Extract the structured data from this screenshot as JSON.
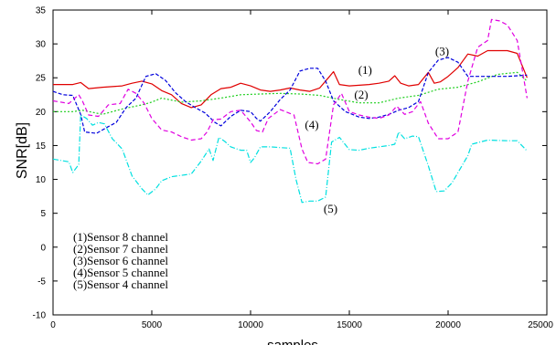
{
  "chart_data": {
    "type": "line",
    "xlabel": "samples",
    "ylabel": "SNR[dB]",
    "xlim": [
      0,
      25000
    ],
    "ylim": [
      -10,
      35
    ],
    "xticks": [
      0,
      5000,
      10000,
      15000,
      20000,
      25000
    ],
    "yticks": [
      -10,
      -5,
      0,
      5,
      10,
      15,
      20,
      25,
      30,
      35
    ],
    "grid": false,
    "legend_position": "bottom-left",
    "legend": [
      "(1)Sensor 8 channel",
      "(2)Sensor 7 channel",
      "(3)Sensor 6 channel",
      "(4)Sensor 5 channel",
      "(5)Sensor 4 channel"
    ],
    "series": [
      {
        "label": "(1)",
        "label_at": [
          15800,
          25.6
        ],
        "color": "#e00000",
        "dash": "",
        "points": [
          [
            0,
            24.0
          ],
          [
            1000,
            24.0
          ],
          [
            1400,
            24.3
          ],
          [
            1800,
            23.4
          ],
          [
            2500,
            23.6
          ],
          [
            3500,
            23.8
          ],
          [
            4000,
            24.2
          ],
          [
            4500,
            24.5
          ],
          [
            5000,
            24.1
          ],
          [
            5500,
            23.1
          ],
          [
            6000,
            22.5
          ],
          [
            6500,
            21.2
          ],
          [
            7000,
            20.6
          ],
          [
            7500,
            21.0
          ],
          [
            8000,
            22.5
          ],
          [
            8500,
            23.4
          ],
          [
            9000,
            23.6
          ],
          [
            9500,
            24.2
          ],
          [
            10000,
            23.8
          ],
          [
            10500,
            23.2
          ],
          [
            11000,
            23.0
          ],
          [
            11500,
            23.2
          ],
          [
            12000,
            23.5
          ],
          [
            12500,
            23.2
          ],
          [
            13000,
            23.0
          ],
          [
            13500,
            23.5
          ],
          [
            14000,
            25.2
          ],
          [
            14200,
            25.9
          ],
          [
            14500,
            24.0
          ],
          [
            15000,
            23.8
          ],
          [
            16000,
            24.0
          ],
          [
            16500,
            24.2
          ],
          [
            17000,
            24.5
          ],
          [
            17300,
            25.3
          ],
          [
            17600,
            24.2
          ],
          [
            18000,
            23.8
          ],
          [
            18500,
            24.0
          ],
          [
            19000,
            25.8
          ],
          [
            19300,
            24.2
          ],
          [
            19600,
            24.4
          ],
          [
            20000,
            25.2
          ],
          [
            20500,
            26.5
          ],
          [
            21000,
            28.5
          ],
          [
            21500,
            28.2
          ],
          [
            22000,
            29.0
          ],
          [
            23000,
            29.0
          ],
          [
            23500,
            28.6
          ],
          [
            24000,
            25.0
          ]
        ]
      },
      {
        "label": "(2)",
        "label_at": [
          15600,
          21.9
        ],
        "color": "#1fcf1f",
        "dash": "2 2",
        "points": [
          [
            0,
            20.0
          ],
          [
            1000,
            20.0
          ],
          [
            1500,
            20.2
          ],
          [
            2500,
            19.6
          ],
          [
            3500,
            20.4
          ],
          [
            4500,
            21.0
          ],
          [
            5000,
            21.4
          ],
          [
            5500,
            22.0
          ],
          [
            6500,
            21.4
          ],
          [
            7500,
            21.6
          ],
          [
            8500,
            22.0
          ],
          [
            9500,
            22.5
          ],
          [
            10500,
            22.6
          ],
          [
            11500,
            22.7
          ],
          [
            12500,
            22.6
          ],
          [
            13500,
            22.4
          ],
          [
            14500,
            21.8
          ],
          [
            15500,
            21.3
          ],
          [
            16500,
            21.3
          ],
          [
            17500,
            22.0
          ],
          [
            18500,
            22.4
          ],
          [
            19500,
            23.3
          ],
          [
            20500,
            23.6
          ],
          [
            21500,
            24.4
          ],
          [
            22500,
            25.5
          ],
          [
            23500,
            25.8
          ],
          [
            24000,
            24.5
          ]
        ]
      },
      {
        "label": "(3)",
        "label_at": [
          19700,
          28.3
        ],
        "color": "#0000dd",
        "dash": "4 2",
        "points": [
          [
            0,
            23.0
          ],
          [
            500,
            22.5
          ],
          [
            1000,
            22.4
          ],
          [
            1400,
            19.6
          ],
          [
            1600,
            17.0
          ],
          [
            2200,
            16.8
          ],
          [
            2800,
            17.8
          ],
          [
            3200,
            18.4
          ],
          [
            3700,
            20.6
          ],
          [
            4200,
            22.0
          ],
          [
            4700,
            25.2
          ],
          [
            5200,
            25.6
          ],
          [
            5700,
            24.6
          ],
          [
            6200,
            22.8
          ],
          [
            6700,
            21.5
          ],
          [
            7200,
            20.6
          ],
          [
            7700,
            19.8
          ],
          [
            8200,
            18.4
          ],
          [
            8500,
            17.9
          ],
          [
            9000,
            19.3
          ],
          [
            9500,
            20.2
          ],
          [
            10000,
            20.0
          ],
          [
            10300,
            19.0
          ],
          [
            10500,
            18.6
          ],
          [
            11000,
            20.0
          ],
          [
            11500,
            21.8
          ],
          [
            12000,
            23.2
          ],
          [
            12500,
            26.0
          ],
          [
            13000,
            26.4
          ],
          [
            13400,
            26.4
          ],
          [
            13800,
            24.5
          ],
          [
            14200,
            21.6
          ],
          [
            14800,
            20.0
          ],
          [
            15500,
            19.2
          ],
          [
            16000,
            19.0
          ],
          [
            16500,
            19.2
          ],
          [
            17000,
            19.6
          ],
          [
            17500,
            20.2
          ],
          [
            18000,
            20.6
          ],
          [
            18500,
            21.5
          ],
          [
            19000,
            25.8
          ],
          [
            19500,
            27.6
          ],
          [
            20000,
            28.0
          ],
          [
            20500,
            27.3
          ],
          [
            21000,
            25.2
          ],
          [
            22000,
            25.2
          ],
          [
            23000,
            25.2
          ],
          [
            24000,
            25.4
          ]
        ]
      },
      {
        "label": "(4)",
        "label_at": [
          13100,
          17.5
        ],
        "color": "#e000e0",
        "dash": "5 3",
        "points": [
          [
            0,
            21.6
          ],
          [
            800,
            21.2
          ],
          [
            1300,
            22.5
          ],
          [
            1500,
            21.5
          ],
          [
            1800,
            19.5
          ],
          [
            2300,
            19.3
          ],
          [
            2800,
            21.0
          ],
          [
            3400,
            21.2
          ],
          [
            3800,
            23.3
          ],
          [
            4200,
            22.7
          ],
          [
            4600,
            21.3
          ],
          [
            5000,
            19.0
          ],
          [
            5500,
            17.3
          ],
          [
            6000,
            17.0
          ],
          [
            6500,
            16.3
          ],
          [
            7000,
            15.8
          ],
          [
            7500,
            16.0
          ],
          [
            7800,
            17.0
          ],
          [
            8100,
            18.8
          ],
          [
            8500,
            18.9
          ],
          [
            9000,
            20.0
          ],
          [
            9500,
            20.2
          ],
          [
            10000,
            18.5
          ],
          [
            10300,
            17.2
          ],
          [
            10600,
            17.0
          ],
          [
            10900,
            19.0
          ],
          [
            11500,
            20.3
          ],
          [
            12200,
            19.5
          ],
          [
            12600,
            14.5
          ],
          [
            12900,
            12.5
          ],
          [
            13400,
            12.3
          ],
          [
            13800,
            13.0
          ],
          [
            14200,
            21.0
          ],
          [
            14600,
            22.7
          ],
          [
            15000,
            20.0
          ],
          [
            15500,
            19.5
          ],
          [
            16000,
            19.2
          ],
          [
            16500,
            19.0
          ],
          [
            17000,
            19.5
          ],
          [
            17400,
            20.8
          ],
          [
            17800,
            19.6
          ],
          [
            18200,
            20.0
          ],
          [
            18600,
            21.5
          ],
          [
            19000,
            18.3
          ],
          [
            19500,
            16.0
          ],
          [
            20000,
            16.0
          ],
          [
            20500,
            17.0
          ],
          [
            21000,
            24.5
          ],
          [
            21500,
            29.5
          ],
          [
            22000,
            30.5
          ],
          [
            22200,
            33.6
          ],
          [
            22600,
            33.4
          ],
          [
            23000,
            32.8
          ],
          [
            23500,
            30.5
          ],
          [
            24000,
            22.0
          ]
        ]
      },
      {
        "label": "(5)",
        "label_at": [
          14050,
          5.1
        ],
        "color": "#00e0e0",
        "dash": "6 2 1 2",
        "points": [
          [
            0,
            13.0
          ],
          [
            800,
            12.6
          ],
          [
            1000,
            11.0
          ],
          [
            1300,
            12.2
          ],
          [
            1400,
            19.5
          ],
          [
            1700,
            19.0
          ],
          [
            2000,
            18.0
          ],
          [
            2300,
            18.4
          ],
          [
            2600,
            18.2
          ],
          [
            3000,
            16.0
          ],
          [
            3500,
            14.5
          ],
          [
            4000,
            10.5
          ],
          [
            4500,
            8.6
          ],
          [
            4800,
            7.7
          ],
          [
            5200,
            8.6
          ],
          [
            5500,
            9.8
          ],
          [
            6000,
            10.4
          ],
          [
            6500,
            10.6
          ],
          [
            7000,
            10.8
          ],
          [
            7500,
            12.7
          ],
          [
            7900,
            14.5
          ],
          [
            8100,
            12.8
          ],
          [
            8400,
            16.2
          ],
          [
            8700,
            15.6
          ],
          [
            9000,
            14.8
          ],
          [
            9500,
            14.3
          ],
          [
            9800,
            14.3
          ],
          [
            10000,
            12.5
          ],
          [
            10200,
            13.2
          ],
          [
            10500,
            14.8
          ],
          [
            11000,
            14.8
          ],
          [
            11500,
            14.7
          ],
          [
            12000,
            14.6
          ],
          [
            12300,
            10.0
          ],
          [
            12600,
            6.6
          ],
          [
            13000,
            6.8
          ],
          [
            13400,
            6.8
          ],
          [
            13800,
            7.4
          ],
          [
            14100,
            15.5
          ],
          [
            14500,
            16.2
          ],
          [
            15000,
            14.4
          ],
          [
            15500,
            14.3
          ],
          [
            16000,
            14.6
          ],
          [
            16500,
            14.8
          ],
          [
            17000,
            15.0
          ],
          [
            17300,
            15.2
          ],
          [
            17500,
            17.0
          ],
          [
            17800,
            16.0
          ],
          [
            18200,
            16.4
          ],
          [
            18500,
            16.3
          ],
          [
            19000,
            12.0
          ],
          [
            19400,
            8.2
          ],
          [
            19800,
            8.3
          ],
          [
            20200,
            9.5
          ],
          [
            20700,
            12.0
          ],
          [
            21000,
            13.5
          ],
          [
            21200,
            15.2
          ],
          [
            22000,
            15.8
          ],
          [
            23000,
            15.7
          ],
          [
            23500,
            15.7
          ],
          [
            24000,
            14.2
          ]
        ]
      }
    ]
  }
}
